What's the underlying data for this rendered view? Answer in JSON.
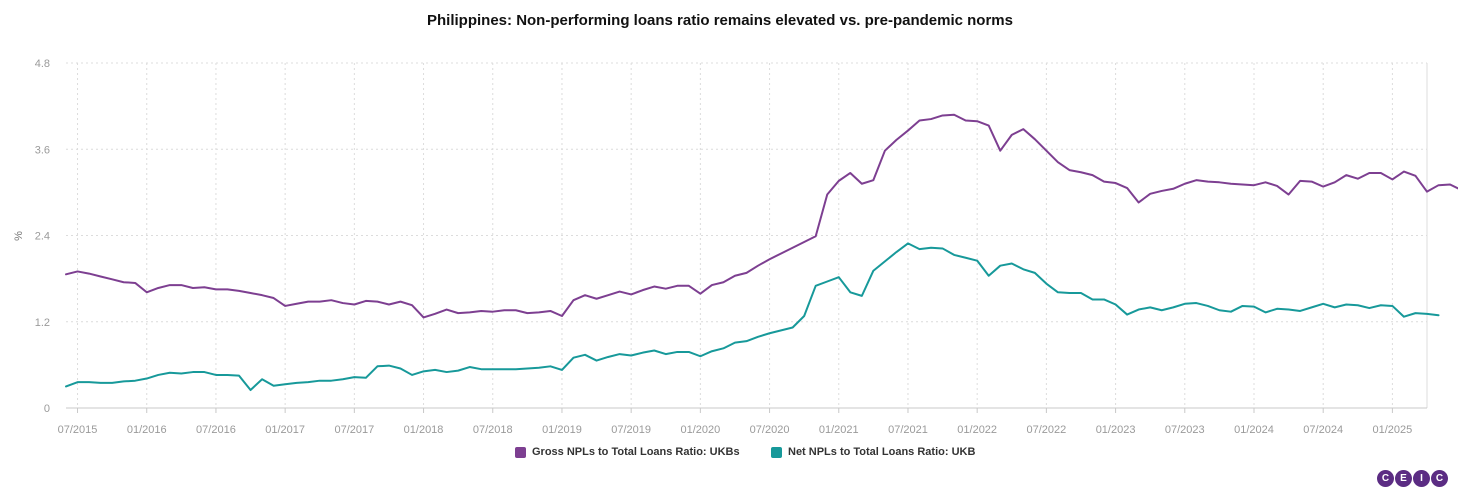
{
  "colors": {
    "gross": "#7d3f91",
    "net": "#17999a",
    "logo": "#5b2c83"
  },
  "logo": {
    "letters": [
      "C",
      "E",
      "I",
      "C"
    ]
  },
  "chart_data": {
    "type": "line",
    "title": "Philippines: Non-performing loans ratio remains elevated vs. pre-pandemic norms",
    "ylabel": "%",
    "ylim": [
      0,
      4.8
    ],
    "yticks": [
      "0",
      "1.2",
      "2.4",
      "3.6",
      "4.8"
    ],
    "x_start": "2015-06",
    "x_end": "2025-04",
    "xticks": [
      "07/2015",
      "01/2016",
      "07/2016",
      "01/2017",
      "07/2017",
      "01/2018",
      "07/2018",
      "01/2019",
      "07/2019",
      "01/2020",
      "07/2020",
      "01/2021",
      "07/2021",
      "01/2022",
      "07/2022",
      "01/2023",
      "07/2023",
      "01/2024",
      "07/2024",
      "01/2025"
    ],
    "grid": true,
    "legend_position": "bottom-center",
    "series": [
      {
        "name": "Gross NPLs to Total Loans Ratio: UKBs",
        "color": "#7d3f91",
        "values": [
          1.86,
          1.9,
          1.87,
          1.83,
          1.79,
          1.75,
          1.74,
          1.61,
          1.67,
          1.71,
          1.71,
          1.67,
          1.68,
          1.65,
          1.65,
          1.63,
          1.6,
          1.57,
          1.53,
          1.42,
          1.45,
          1.48,
          1.48,
          1.5,
          1.46,
          1.44,
          1.49,
          1.48,
          1.44,
          1.48,
          1.43,
          1.26,
          1.31,
          1.37,
          1.32,
          1.33,
          1.35,
          1.34,
          1.36,
          1.36,
          1.32,
          1.33,
          1.35,
          1.28,
          1.5,
          1.57,
          1.52,
          1.57,
          1.62,
          1.58,
          1.64,
          1.69,
          1.66,
          1.7,
          1.7,
          1.59,
          1.71,
          1.75,
          1.84,
          1.88,
          1.98,
          2.07,
          2.15,
          2.23,
          2.31,
          2.39,
          2.97,
          3.16,
          3.27,
          3.12,
          3.17,
          3.58,
          3.73,
          3.86,
          4.0,
          4.02,
          4.07,
          4.08,
          4.0,
          3.99,
          3.93,
          3.58,
          3.8,
          3.88,
          3.74,
          3.58,
          3.42,
          3.31,
          3.28,
          3.24,
          3.15,
          3.13,
          3.06,
          2.86,
          2.98,
          3.02,
          3.05,
          3.12,
          3.17,
          3.15,
          3.14,
          3.12,
          3.11,
          3.1,
          3.14,
          3.09,
          2.97,
          3.16,
          3.15,
          3.08,
          3.14,
          3.24,
          3.19,
          3.27,
          3.27,
          3.18,
          3.29,
          3.23,
          3.01,
          3.1,
          3.11,
          3.03
        ]
      },
      {
        "name": "Net NPLs to Total Loans Ratio: UKB",
        "color": "#17999a",
        "values": [
          0.3,
          0.36,
          0.36,
          0.35,
          0.35,
          0.37,
          0.38,
          0.41,
          0.46,
          0.49,
          0.48,
          0.5,
          0.5,
          0.46,
          0.46,
          0.45,
          0.25,
          0.4,
          0.31,
          0.33,
          0.35,
          0.36,
          0.38,
          0.38,
          0.4,
          0.43,
          0.42,
          0.58,
          0.59,
          0.55,
          0.46,
          0.51,
          0.53,
          0.5,
          0.52,
          0.57,
          0.54,
          0.54,
          0.54,
          0.54,
          0.55,
          0.56,
          0.58,
          0.53,
          0.7,
          0.74,
          0.66,
          0.71,
          0.75,
          0.73,
          0.77,
          0.8,
          0.75,
          0.78,
          0.78,
          0.72,
          0.79,
          0.83,
          0.91,
          0.93,
          0.99,
          1.04,
          1.08,
          1.12,
          1.28,
          1.7,
          1.76,
          1.82,
          1.61,
          1.56,
          1.91,
          2.04,
          2.17,
          2.29,
          2.21,
          2.23,
          2.22,
          2.13,
          2.09,
          2.05,
          1.84,
          1.98,
          2.01,
          1.93,
          1.88,
          1.73,
          1.61,
          1.6,
          1.6,
          1.51,
          1.51,
          1.44,
          1.3,
          1.37,
          1.4,
          1.36,
          1.4,
          1.45,
          1.46,
          1.42,
          1.36,
          1.34,
          1.42,
          1.41,
          1.33,
          1.38,
          1.37,
          1.35,
          1.4,
          1.45,
          1.4,
          1.44,
          1.43,
          1.39,
          1.43,
          1.42,
          1.27,
          1.32,
          1.31,
          1.29
        ]
      }
    ]
  }
}
